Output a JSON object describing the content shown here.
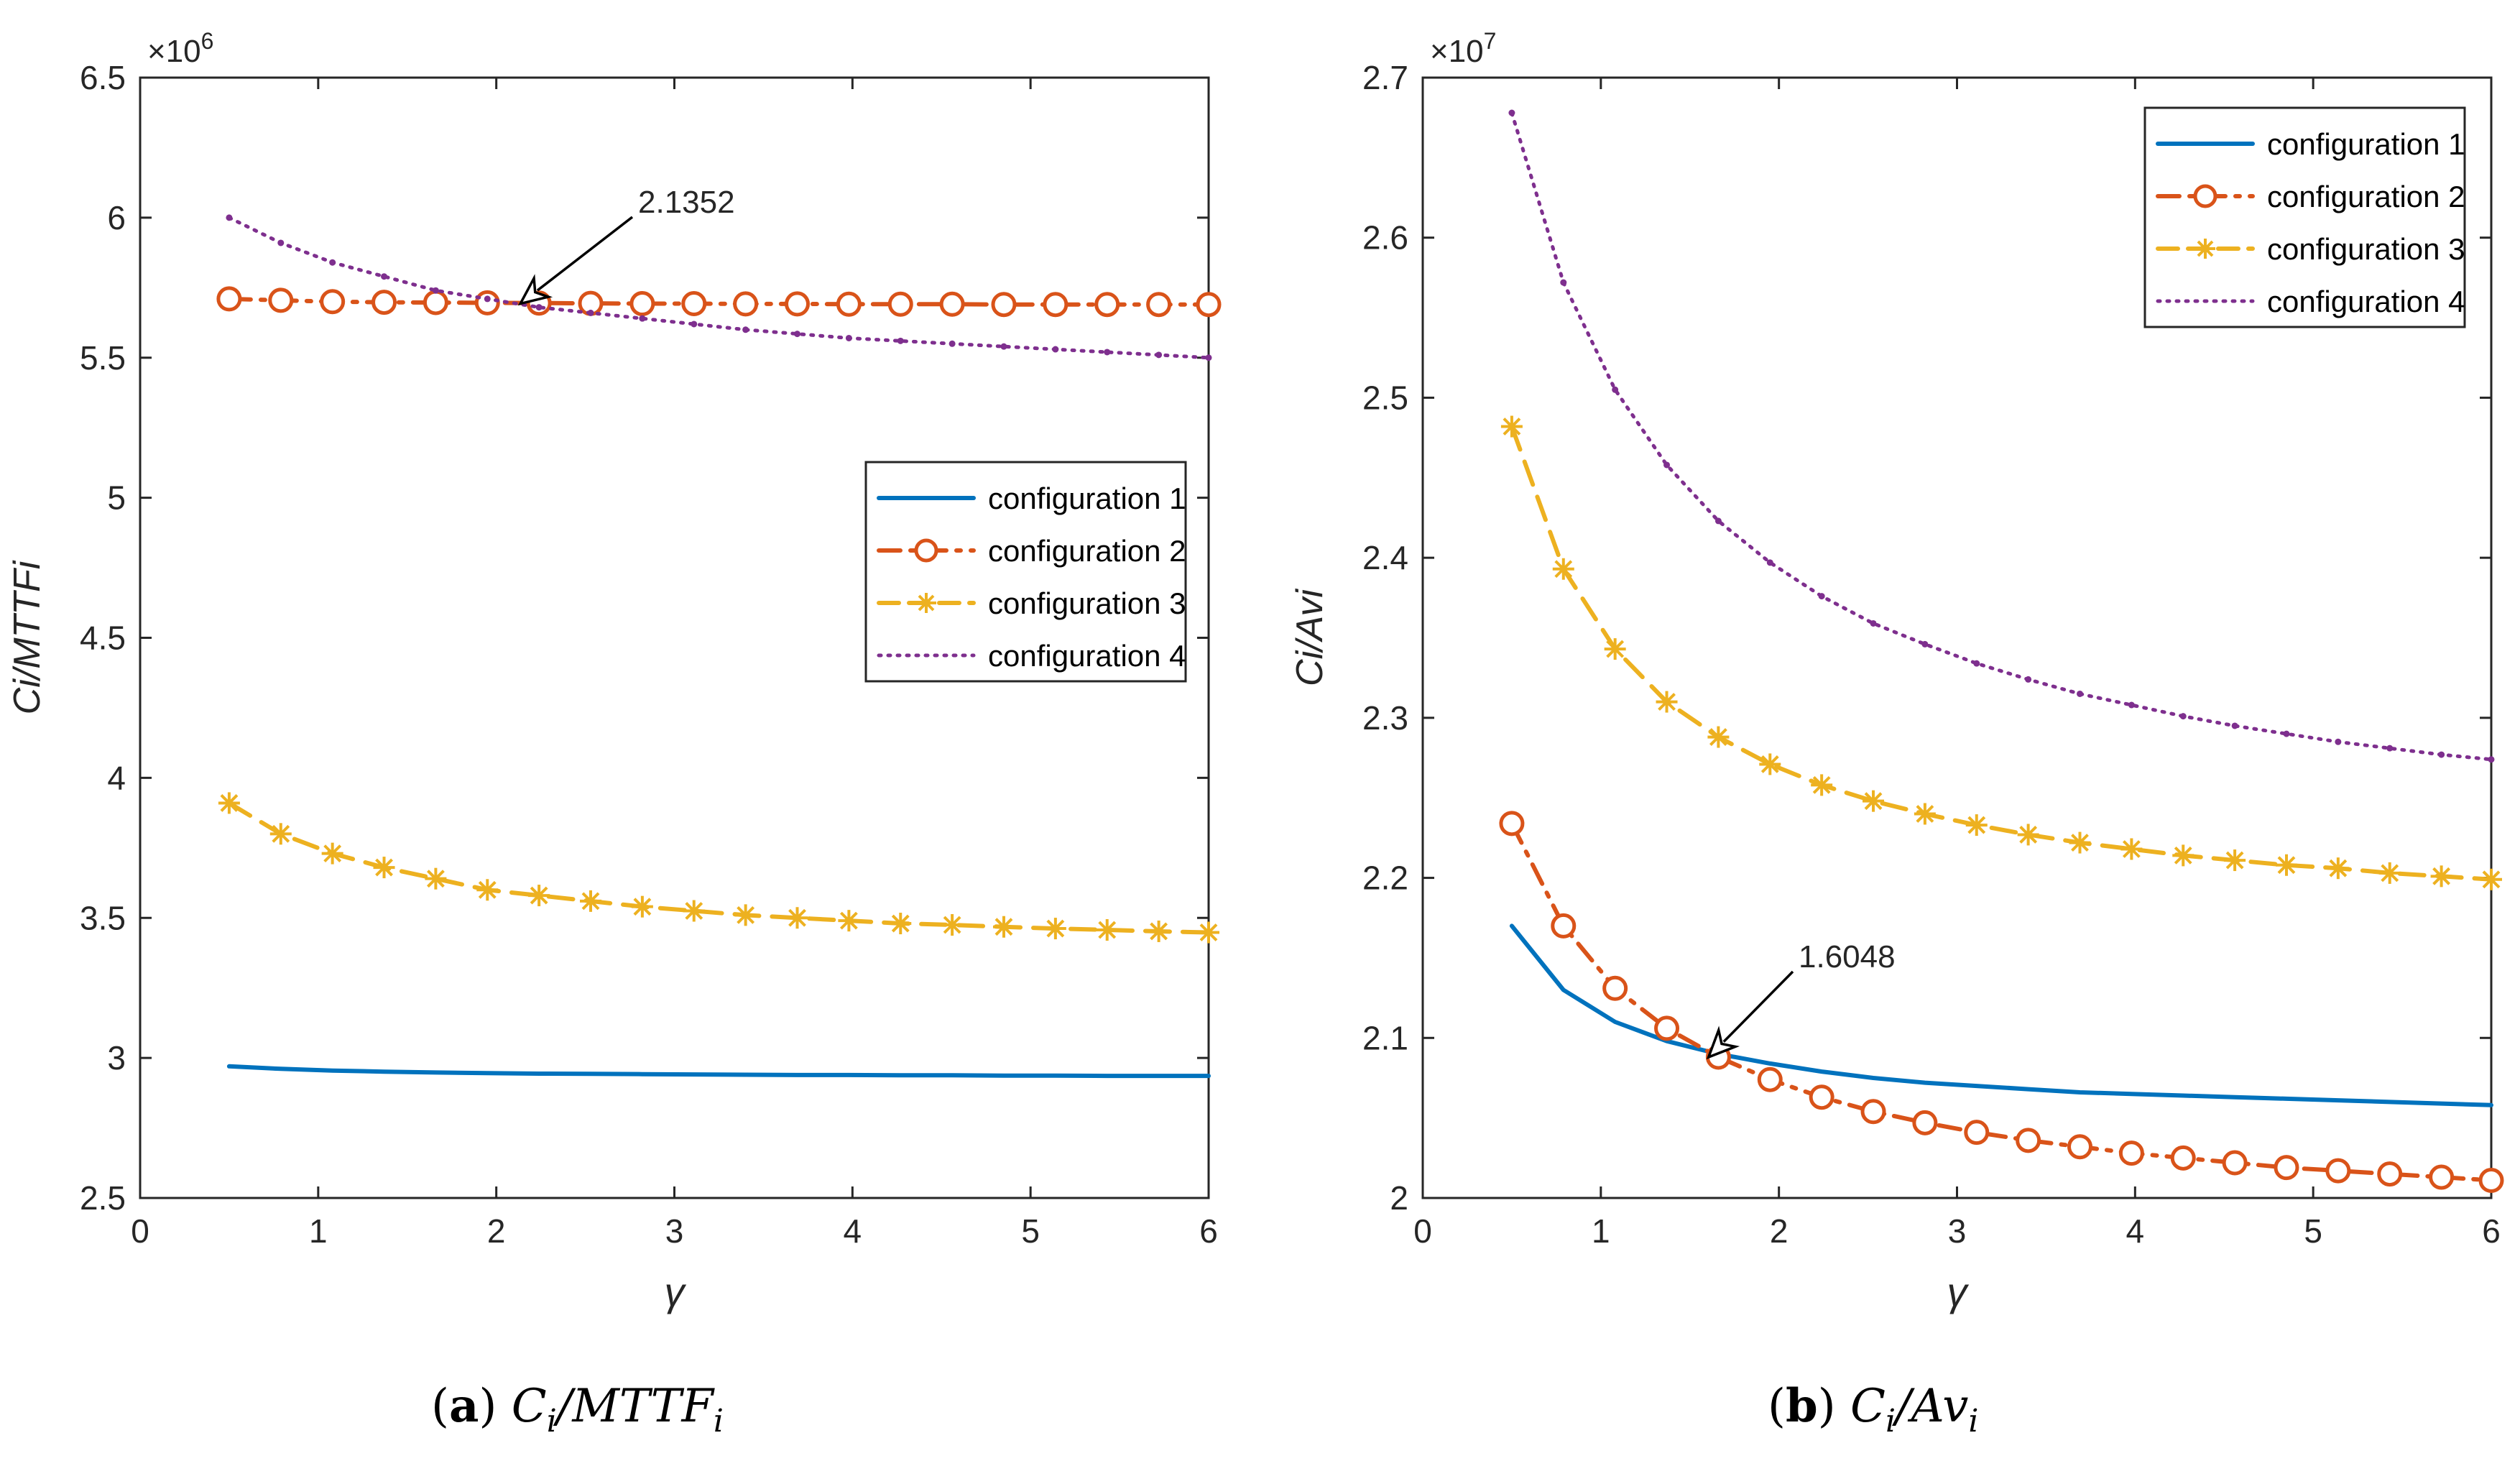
{
  "colors": {
    "configuration_1": "#0072BD",
    "configuration_2": "#D95319",
    "configuration_3": "#EDB120",
    "configuration_4": "#7E2F8E",
    "axis": "#262626"
  },
  "chart_data": [
    {
      "type": "line",
      "panel_label": "(a)",
      "caption": "Ci/MTTFi",
      "xlabel": "γ",
      "ylabel": "Ci/MTTFi",
      "exponent_label": "×10^6",
      "exponent_base": "×10",
      "exponent_power": "6",
      "xlim": [
        0,
        6
      ],
      "ylim": [
        2.5,
        6.5
      ],
      "xticks": [
        0,
        1,
        2,
        3,
        4,
        5,
        6
      ],
      "yticks": [
        2.5,
        3,
        3.5,
        4,
        4.5,
        5,
        5.5,
        6,
        6.5
      ],
      "x": [
        0.5,
        0.79,
        1.08,
        1.37,
        1.66,
        1.95,
        2.24,
        2.53,
        2.82,
        3.11,
        3.4,
        3.69,
        3.98,
        4.27,
        4.56,
        4.85,
        5.14,
        5.43,
        5.72,
        6.0
      ],
      "series": [
        {
          "name": "configuration 1",
          "style": "solid",
          "values": [
            2.97,
            2.961,
            2.955,
            2.951,
            2.948,
            2.946,
            2.944,
            2.943,
            2.942,
            2.941,
            2.94,
            2.939,
            2.939,
            2.938,
            2.938,
            2.937,
            2.937,
            2.936,
            2.936,
            2.936
          ]
        },
        {
          "name": "configuration 2",
          "style": "dashdot-circle",
          "values": [
            5.71,
            5.705,
            5.7,
            5.698,
            5.697,
            5.696,
            5.695,
            5.694,
            5.693,
            5.693,
            5.692,
            5.692,
            5.691,
            5.691,
            5.691,
            5.69,
            5.69,
            5.69,
            5.69,
            5.69
          ]
        },
        {
          "name": "configuration 3",
          "style": "dashed-star",
          "values": [
            3.91,
            3.8,
            3.73,
            3.68,
            3.64,
            3.6,
            3.58,
            3.56,
            3.54,
            3.525,
            3.51,
            3.5,
            3.49,
            3.48,
            3.475,
            3.468,
            3.462,
            3.457,
            3.452,
            3.448
          ]
        },
        {
          "name": "configuration 4",
          "style": "dotted",
          "values": [
            6.0,
            5.91,
            5.84,
            5.79,
            5.74,
            5.71,
            5.68,
            5.66,
            5.64,
            5.62,
            5.6,
            5.585,
            5.57,
            5.56,
            5.55,
            5.54,
            5.53,
            5.52,
            5.51,
            5.5
          ]
        }
      ],
      "annotation": {
        "text": "2.1352",
        "x": 2.1352,
        "y": 5.693
      },
      "legend_position": "center-right"
    },
    {
      "type": "line",
      "panel_label": "(b)",
      "caption": "Ci/Avi",
      "xlabel": "γ",
      "ylabel": "Ci/Avi",
      "exponent_label": "×10^7",
      "exponent_base": "×10",
      "exponent_power": "7",
      "xlim": [
        0,
        6
      ],
      "ylim": [
        2.0,
        2.7
      ],
      "xticks": [
        0,
        1,
        2,
        3,
        4,
        5,
        6
      ],
      "yticks": [
        2.0,
        2.1,
        2.2,
        2.3,
        2.4,
        2.5,
        2.6,
        2.7
      ],
      "x": [
        0.5,
        0.79,
        1.08,
        1.37,
        1.66,
        1.95,
        2.24,
        2.53,
        2.82,
        3.11,
        3.4,
        3.69,
        3.98,
        4.27,
        4.56,
        4.85,
        5.14,
        5.43,
        5.72,
        6.0
      ],
      "series": [
        {
          "name": "configuration 1",
          "style": "solid",
          "values": [
            2.17,
            2.13,
            2.11,
            2.098,
            2.09,
            2.084,
            2.079,
            2.075,
            2.072,
            2.07,
            2.068,
            2.066,
            2.065,
            2.064,
            2.063,
            2.062,
            2.061,
            2.06,
            2.059,
            2.058
          ]
        },
        {
          "name": "configuration 2",
          "style": "dashdot-circle",
          "values": [
            2.234,
            2.17,
            2.131,
            2.106,
            2.088,
            2.074,
            2.063,
            2.054,
            2.047,
            2.041,
            2.036,
            2.032,
            2.028,
            2.025,
            2.022,
            2.019,
            2.017,
            2.015,
            2.013,
            2.011
          ]
        },
        {
          "name": "configuration 3",
          "style": "dashed-star",
          "values": [
            2.482,
            2.393,
            2.343,
            2.31,
            2.288,
            2.271,
            2.258,
            2.248,
            2.24,
            2.233,
            2.227,
            2.222,
            2.218,
            2.214,
            2.211,
            2.208,
            2.206,
            2.203,
            2.201,
            2.199
          ]
        },
        {
          "name": "configuration 4",
          "style": "dotted",
          "values": [
            2.678,
            2.572,
            2.505,
            2.458,
            2.423,
            2.397,
            2.376,
            2.359,
            2.346,
            2.334,
            2.324,
            2.315,
            2.308,
            2.301,
            2.295,
            2.29,
            2.285,
            2.281,
            2.277,
            2.274
          ]
        }
      ],
      "annotation": {
        "text": "1.6048",
        "x": 1.6048,
        "y": 2.088
      },
      "legend_position": "top-right"
    }
  ]
}
